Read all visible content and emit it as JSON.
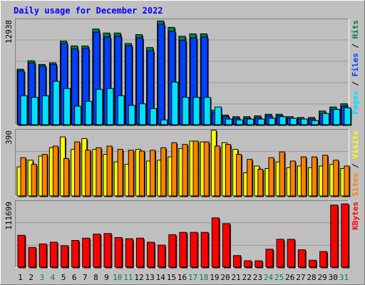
{
  "chart_data": [
    {
      "type": "bar",
      "panel": "hits-files-pages",
      "title": "Daily usage for December 2022",
      "ylabel_parts": [
        "Pages",
        " / ",
        "Files",
        " / ",
        "Hits"
      ],
      "ymax_label": "12938",
      "ylim": [
        0,
        12938
      ],
      "categories": [
        "1",
        "2",
        "3",
        "4",
        "5",
        "6",
        "7",
        "8",
        "9",
        "10",
        "11",
        "12",
        "13",
        "14",
        "15",
        "16",
        "17",
        "18",
        "19",
        "20",
        "21",
        "22",
        "23",
        "24",
        "25",
        "26",
        "27",
        "28",
        "29",
        "30",
        "31"
      ],
      "series": [
        {
          "name": "Hits",
          "color": "#008040",
          "values": [
            6900,
            7950,
            7500,
            7700,
            10400,
            9800,
            9800,
            11900,
            11400,
            11400,
            10100,
            11200,
            9600,
            12900,
            12100,
            11000,
            11300,
            11300,
            1800,
            1200,
            1000,
            1000,
            1100,
            1300,
            1300,
            1000,
            900,
            900,
            1700,
            2200,
            2600
          ]
        },
        {
          "name": "Files",
          "color": "#0040ff",
          "values": [
            6700,
            7700,
            7300,
            7500,
            10100,
            9400,
            9500,
            11500,
            10900,
            11000,
            9800,
            10800,
            9200,
            12500,
            11600,
            10500,
            10800,
            10900,
            1500,
            1000,
            800,
            800,
            900,
            1100,
            1100,
            800,
            700,
            700,
            1400,
            1900,
            2300
          ]
        },
        {
          "name": "Pages",
          "color": "#00e0ff",
          "values": [
            3600,
            3400,
            3600,
            5400,
            4500,
            2300,
            2900,
            4400,
            4500,
            3600,
            2400,
            2600,
            2000,
            600,
            5300,
            3400,
            3400,
            3400,
            2200,
            700,
            600,
            700,
            700,
            800,
            1000,
            800,
            700,
            500,
            1400,
            1900,
            2100
          ]
        }
      ]
    },
    {
      "type": "bar",
      "panel": "sites-visits",
      "ylabel_parts": [
        "Sites",
        " / ",
        "Visits"
      ],
      "ymax_label": "390",
      "ylim": [
        0,
        390
      ],
      "categories": [
        "1",
        "2",
        "3",
        "4",
        "5",
        "6",
        "7",
        "8",
        "9",
        "10",
        "11",
        "12",
        "13",
        "14",
        "15",
        "16",
        "17",
        "18",
        "19",
        "20",
        "21",
        "22",
        "23",
        "24",
        "25",
        "26",
        "27",
        "28",
        "29",
        "30",
        "31"
      ],
      "series": [
        {
          "name": "Visits",
          "color": "#ffff00",
          "values": [
            175,
            215,
            240,
            290,
            355,
            280,
            345,
            280,
            250,
            205,
            190,
            280,
            210,
            215,
            235,
            285,
            330,
            325,
            395,
            320,
            280,
            140,
            180,
            165,
            205,
            170,
            180,
            170,
            180,
            190,
            165
          ]
        },
        {
          "name": "Sites",
          "color": "#ff8000",
          "values": [
            230,
            190,
            250,
            300,
            225,
            325,
            275,
            290,
            300,
            280,
            275,
            270,
            275,
            290,
            320,
            310,
            330,
            325,
            300,
            310,
            250,
            220,
            160,
            230,
            265,
            210,
            235,
            235,
            245,
            215,
            180
          ]
        }
      ]
    },
    {
      "type": "bar",
      "panel": "kbytes",
      "ylabel_parts": [
        "KBytes"
      ],
      "ymax_label": "111699",
      "ylim": [
        0,
        111699
      ],
      "categories": [
        "1",
        "2",
        "3",
        "4",
        "5",
        "6",
        "7",
        "8",
        "9",
        "10",
        "11",
        "12",
        "13",
        "14",
        "15",
        "16",
        "17",
        "18",
        "19",
        "20",
        "21",
        "22",
        "23",
        "24",
        "25",
        "26",
        "27",
        "28",
        "29",
        "30",
        "31"
      ],
      "series": [
        {
          "name": "KBytes",
          "color": "#ff0000",
          "values": [
            55000,
            34000,
            40000,
            43000,
            37000,
            46000,
            50000,
            57000,
            58000,
            51000,
            49000,
            50000,
            43000,
            38000,
            56000,
            60000,
            60000,
            60000,
            85000,
            75000,
            20000,
            11000,
            11000,
            31000,
            48000,
            48000,
            30000,
            12000,
            27000,
            107000,
            109000
          ]
        }
      ]
    }
  ],
  "x_labels": {
    "weekend_days": [
      "3",
      "4",
      "10",
      "11",
      "17",
      "18",
      "24",
      "25",
      "31"
    ],
    "weekday_color": "#000000",
    "weekend_color": "#00805c"
  },
  "colors": {
    "background": "#c0c0c0",
    "plot_background": "#bfbfbf",
    "title": "#0000ff",
    "sites_label": "#ff8000",
    "visits_label": "#ffff00",
    "pages_label": "#00e0ff",
    "files_label": "#0040ff",
    "hits_label": "#008040",
    "kbytes_label": "#ff0000"
  }
}
